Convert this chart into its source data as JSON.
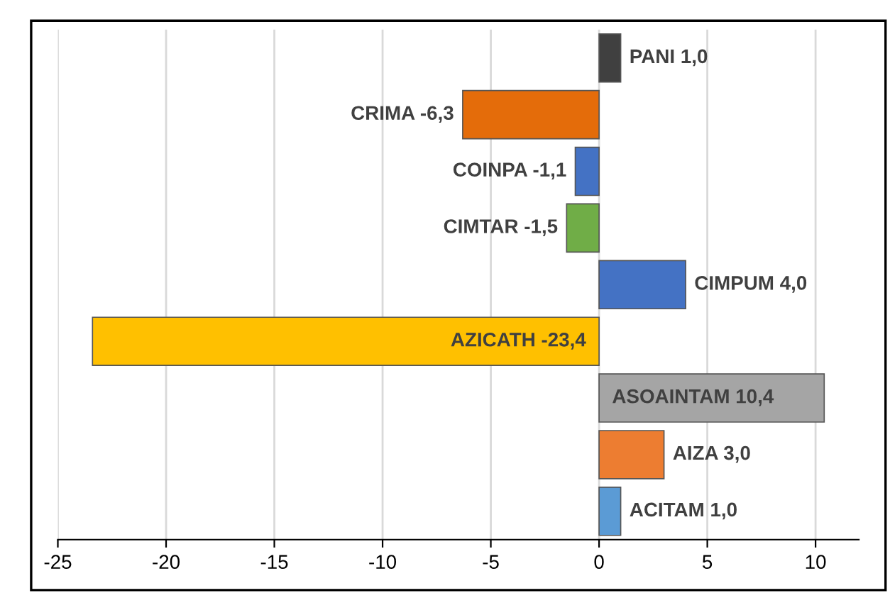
{
  "chart_data": {
    "type": "bar",
    "orientation": "horizontal",
    "categories": [
      "PANI",
      "CRIMA",
      "COINPA",
      "CIMTAR",
      "CIMPUM",
      "AZICATH",
      "ASOAINTAM",
      "AIZA",
      "ACITAM"
    ],
    "values": [
      1.0,
      -6.3,
      -1.1,
      -1.5,
      4.0,
      -23.4,
      10.4,
      3.0,
      1.0
    ],
    "value_labels": [
      "1,0",
      "-6,3",
      "-1,1",
      "-1,5",
      "4,0",
      "-23,4",
      "10,4",
      "3,0",
      "1,0"
    ],
    "colors": [
      "#404040",
      "#e46c0a",
      "#4472c4",
      "#70ad47",
      "#4472c4",
      "#ffc000",
      "#a5a5a5",
      "#ed7d31",
      "#5b9bd5"
    ],
    "xlim": [
      -25,
      12
    ],
    "xticks": [
      -25,
      -20,
      -15,
      -10,
      -5,
      0,
      5,
      10
    ],
    "grid": "x",
    "tick_labels": "x"
  }
}
